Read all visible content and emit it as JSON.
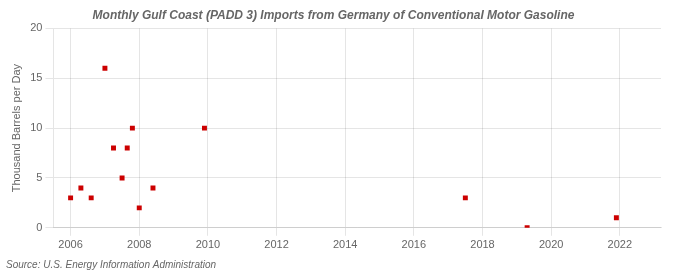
{
  "chart_data": {
    "type": "scatter",
    "title": "Monthly Gulf Coast (PADD 3) Imports from Germany of Conventional Motor Gasoline",
    "ylabel": "Thousand Barrels per Day",
    "source": "Source: U.S. Energy Information Administration",
    "x": [
      2006.0,
      2006.3,
      2006.6,
      2007.0,
      2007.25,
      2007.5,
      2007.65,
      2007.8,
      2008.0,
      2008.4,
      2009.9,
      2017.5,
      2019.3,
      2021.9
    ],
    "values": [
      3,
      4,
      3,
      16,
      8,
      5,
      8,
      10,
      2,
      4,
      10,
      3,
      0,
      1
    ],
    "color": "#cc0000",
    "marker": "square",
    "xlim": [
      2005.5,
      2023.2
    ],
    "xticks": [
      2006,
      2008,
      2010,
      2012,
      2014,
      2016,
      2018,
      2020,
      2022
    ],
    "ylim": [
      0,
      20
    ],
    "yticks": [
      0,
      5,
      10,
      15,
      20
    ],
    "grid": true
  }
}
